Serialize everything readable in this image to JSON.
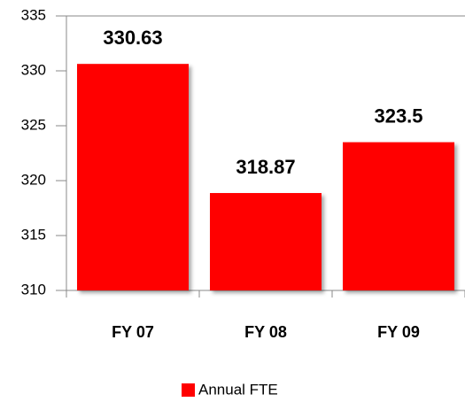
{
  "chart_data": {
    "type": "bar",
    "categories": [
      "FY 07",
      "FY 08",
      "FY 09"
    ],
    "series": [
      {
        "name": "Annual FTE",
        "color": "#ff0000",
        "values": [
          330.63,
          318.87,
          323.5
        ]
      }
    ],
    "ylim": [
      310,
      335
    ],
    "yticks": [
      310,
      315,
      320,
      325,
      330,
      335
    ],
    "grid": false,
    "legend": "bottom"
  }
}
